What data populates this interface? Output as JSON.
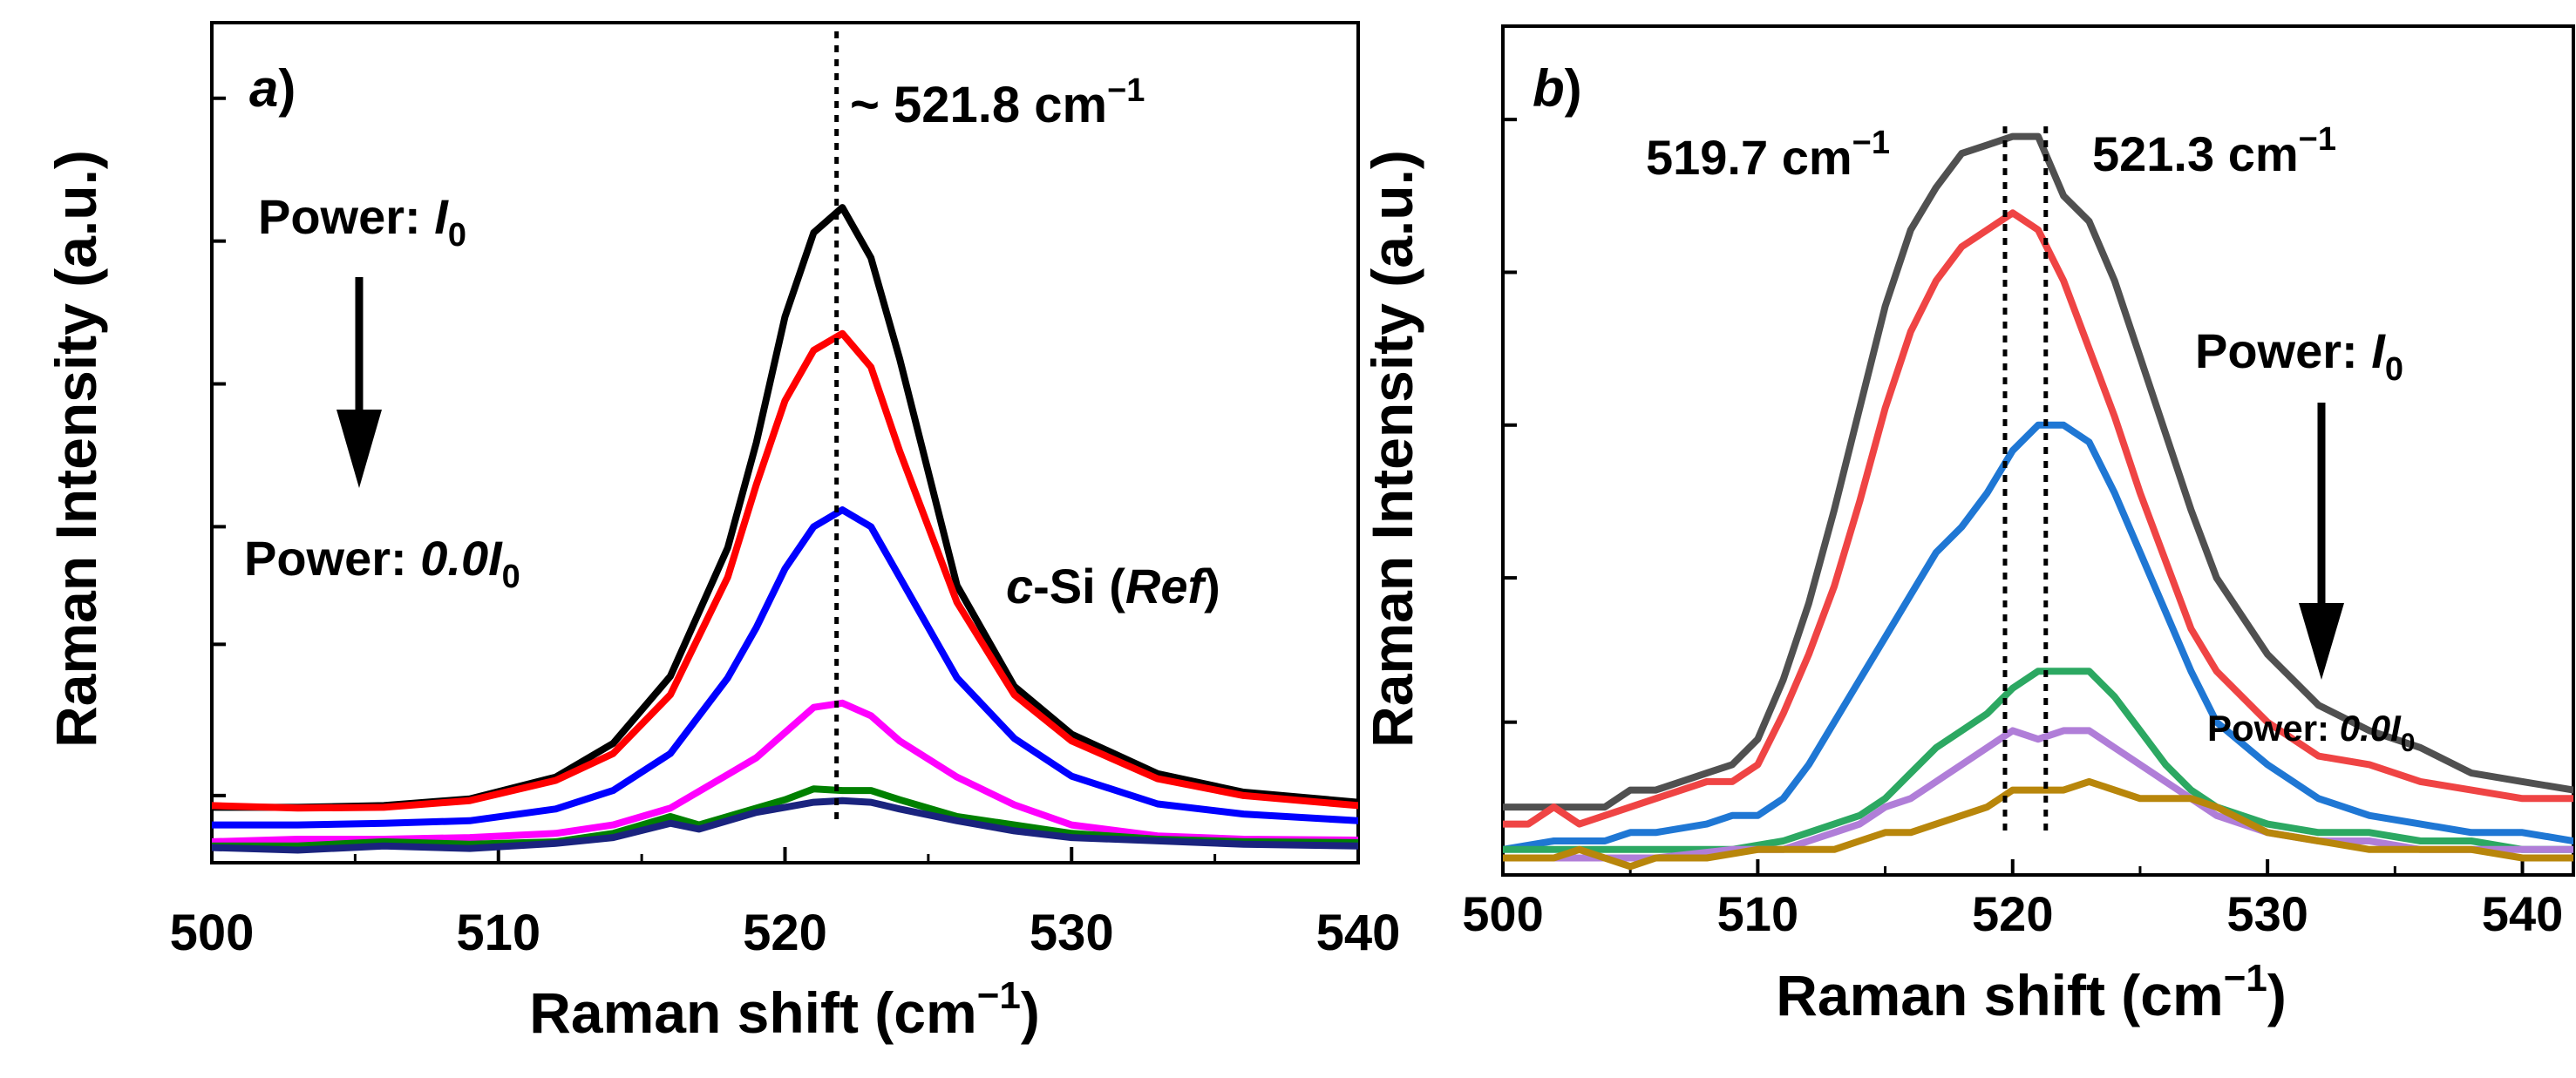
{
  "chart_data": [
    {
      "panel": "a",
      "type": "line",
      "panel_label": "a",
      "panel_label_suffix": ")",
      "xlabel": "Raman shift (cm",
      "xlabel_exp": "−1",
      "xlabel_close": ")",
      "ylabel": "Raman Intensity (a.u.)",
      "xlim": [
        500,
        540
      ],
      "ylim": [
        0,
        100
      ],
      "x_ticks": [
        500,
        510,
        520,
        530,
        540
      ],
      "y_ticks_unlabeled": [
        8,
        26,
        40,
        57,
        74,
        91
      ],
      "peak_line_x": 521.8,
      "peak_label": "~ 521.8 cm",
      "peak_label_exp": "−1",
      "power_top_prefix": "Power: ",
      "power_top_symbol": "I",
      "power_top_sub": "0",
      "power_bottom_prefix": "Power: ",
      "power_bottom_symbol": "0.0I",
      "power_bottom_sub": "0",
      "sample_italic": "c",
      "sample_mid": "-Si (",
      "sample_ref": "Ref",
      "sample_close": ")",
      "series": [
        {
          "name": "black",
          "color": "#000000",
          "x": [
            500,
            503,
            506,
            509,
            512,
            514,
            516,
            518,
            519,
            520,
            521,
            522,
            523,
            524,
            526,
            528,
            530,
            533,
            536,
            540
          ],
          "y": [
            6.6,
            6.6,
            6.8,
            7.6,
            10.2,
            14.2,
            22.2,
            37.5,
            50,
            65,
            75,
            78,
            72,
            60,
            33,
            21,
            15.3,
            10.6,
            8.4,
            7.2
          ]
        },
        {
          "name": "red",
          "color": "#ff0000",
          "x": [
            500,
            503,
            506,
            509,
            512,
            514,
            516,
            518,
            519,
            520,
            521,
            522,
            523,
            524,
            526,
            528,
            530,
            533,
            536,
            540
          ],
          "y": [
            6.8,
            6.5,
            6.6,
            7.4,
            9.8,
            13,
            20,
            34,
            45,
            55,
            61,
            63,
            59,
            49,
            31,
            20,
            14.5,
            10,
            8,
            6.8
          ]
        },
        {
          "name": "blue",
          "color": "#0000ff",
          "x": [
            500,
            503,
            506,
            509,
            512,
            514,
            516,
            518,
            519,
            520,
            521,
            522,
            523,
            524,
            526,
            528,
            530,
            533,
            536,
            540
          ],
          "y": [
            4.5,
            4.5,
            4.7,
            5,
            6.4,
            8.6,
            13,
            22,
            28,
            35,
            40,
            42,
            40,
            34,
            22,
            14.8,
            10.3,
            7,
            5.8,
            5
          ]
        },
        {
          "name": "magenta",
          "color": "#ff00ff",
          "x": [
            500,
            503,
            506,
            509,
            512,
            514,
            516,
            518,
            519,
            520,
            521,
            522,
            523,
            524,
            526,
            528,
            530,
            533,
            536,
            540
          ],
          "y": [
            2.5,
            2.8,
            2.8,
            3,
            3.5,
            4.5,
            6.5,
            10.5,
            12.5,
            15.5,
            18.5,
            19,
            17.5,
            14.5,
            10.2,
            6.9,
            4.5,
            3.2,
            2.8,
            2.7
          ]
        },
        {
          "name": "green",
          "color": "#008000",
          "x": [
            500,
            503,
            506,
            509,
            512,
            514,
            516,
            517,
            519,
            520,
            521,
            522,
            523,
            524,
            526,
            528,
            530,
            533,
            536,
            540
          ],
          "y": [
            2,
            2,
            2.5,
            2.2,
            2.5,
            3.5,
            5.5,
            4.5,
            6.5,
            7.5,
            8.8,
            8.6,
            8.6,
            7.5,
            5.5,
            4.5,
            3.5,
            2.8,
            2.5,
            2.4
          ]
        },
        {
          "name": "navy",
          "color": "#1a237e",
          "x": [
            500,
            503,
            506,
            509,
            512,
            514,
            516,
            517,
            519,
            520,
            521,
            522,
            523,
            524,
            526,
            528,
            530,
            533,
            536,
            540
          ],
          "y": [
            1.8,
            1.5,
            2,
            1.7,
            2.3,
            3,
            4.7,
            4,
            6,
            6.6,
            7.2,
            7.4,
            7.2,
            6.4,
            5,
            3.8,
            3,
            2.6,
            2.2,
            2
          ]
        }
      ]
    },
    {
      "panel": "b",
      "type": "line",
      "panel_label": "b",
      "panel_label_suffix": ")",
      "xlabel": "Raman shift (cm",
      "xlabel_exp": "−1",
      "xlabel_close": ")",
      "ylabel": "Raman Intensity (a.u.)",
      "xlim": [
        500,
        542
      ],
      "ylim": [
        0,
        100
      ],
      "x_ticks": [
        500,
        510,
        520,
        530,
        540
      ],
      "y_ticks_unlabeled": [
        18,
        35,
        53,
        71,
        89
      ],
      "peak_lines_x": [
        519.7,
        521.3
      ],
      "peak_label_1": "519.7 cm",
      "peak_label_1_exp": "−1",
      "peak_label_2": "521.3 cm",
      "peak_label_2_exp": "−1",
      "power_top_prefix": "Power: ",
      "power_top_symbol": "I",
      "power_top_sub": "0",
      "power_bottom_prefix": "Power: ",
      "power_bottom_symbol": "0.0I",
      "power_bottom_sub": "0",
      "series": [
        {
          "name": "dark-gray",
          "color": "#505050",
          "x": [
            500,
            502,
            504,
            505,
            506,
            508,
            509,
            510,
            511,
            512,
            513,
            514,
            515,
            516,
            517,
            518,
            519,
            520,
            521,
            522,
            523,
            524,
            525,
            526,
            527,
            528,
            530,
            532,
            534,
            536,
            538,
            540,
            542
          ],
          "y": [
            8,
            8,
            8,
            10,
            10,
            12,
            13,
            16,
            23,
            32,
            43,
            55,
            67,
            76,
            81,
            85,
            86,
            87,
            87,
            80,
            77,
            70,
            61,
            52,
            43,
            35,
            26,
            20,
            17,
            15,
            12,
            11,
            10
          ]
        },
        {
          "name": "red",
          "color": "#ef4444",
          "x": [
            500,
            501,
            502,
            503,
            504,
            506,
            508,
            509,
            510,
            511,
            512,
            513,
            514,
            515,
            516,
            517,
            518,
            519,
            520,
            521,
            522,
            523,
            524,
            525,
            526,
            527,
            528,
            530,
            532,
            534,
            536,
            538,
            540,
            542
          ],
          "y": [
            6,
            6,
            8,
            6,
            7,
            9,
            11,
            11,
            13,
            19,
            26,
            34,
            44,
            55,
            64,
            70,
            74,
            76,
            78,
            76,
            70,
            62,
            54,
            45,
            37,
            29,
            24,
            18,
            14,
            13,
            11,
            10,
            9,
            9
          ]
        },
        {
          "name": "blue",
          "color": "#1f77d4",
          "x": [
            500,
            502,
            504,
            505,
            506,
            508,
            509,
            510,
            511,
            512,
            513,
            514,
            515,
            516,
            517,
            518,
            519,
            520,
            521,
            522,
            523,
            524,
            525,
            526,
            527,
            528,
            530,
            532,
            534,
            536,
            538,
            540,
            542
          ],
          "y": [
            3,
            4,
            4,
            5,
            5,
            6,
            7,
            7,
            9,
            13,
            18,
            23,
            28,
            33,
            38,
            41,
            45,
            50,
            53,
            53,
            51,
            45,
            38,
            31,
            24,
            18,
            13,
            9,
            7,
            6,
            5,
            5,
            4
          ]
        },
        {
          "name": "green",
          "color": "#2ca862",
          "x": [
            500,
            503,
            506,
            509,
            511,
            512,
            513,
            514,
            515,
            516,
            517,
            518,
            519,
            520,
            521,
            522,
            523,
            524,
            525,
            526,
            527,
            528,
            530,
            532,
            534,
            536,
            538,
            540,
            542
          ],
          "y": [
            3,
            3,
            3,
            3,
            4,
            5,
            6,
            7,
            9,
            12,
            15,
            17,
            19,
            22,
            24,
            24,
            24,
            21,
            17,
            13,
            10,
            8,
            6,
            5,
            5,
            4,
            4,
            3,
            3
          ]
        },
        {
          "name": "purple",
          "color": "#b07ed8",
          "x": [
            500,
            503,
            506,
            509,
            511,
            512,
            513,
            514,
            515,
            516,
            517,
            518,
            519,
            520,
            521,
            522,
            523,
            524,
            525,
            526,
            527,
            528,
            530,
            532,
            534,
            536,
            538,
            540,
            542
          ],
          "y": [
            2,
            2,
            2,
            3,
            3,
            4,
            5,
            6,
            8,
            9,
            11,
            13,
            15,
            17,
            16,
            17,
            17,
            15,
            13,
            11,
            9,
            7,
            5,
            4,
            4,
            3,
            3,
            3,
            3
          ]
        },
        {
          "name": "gold",
          "color": "#b8860b",
          "x": [
            500,
            502,
            503,
            505,
            506,
            508,
            510,
            512,
            513,
            514,
            515,
            516,
            517,
            518,
            519,
            520,
            521,
            522,
            523,
            524,
            525,
            526,
            527,
            528,
            530,
            532,
            534,
            536,
            538,
            540,
            542
          ],
          "y": [
            2,
            2,
            3,
            1,
            2,
            2,
            3,
            3,
            3,
            4,
            5,
            5,
            6,
            7,
            8,
            10,
            10,
            10,
            11,
            10,
            9,
            9,
            9,
            8,
            5,
            4,
            3,
            3,
            3,
            2,
            2
          ]
        }
      ]
    }
  ]
}
